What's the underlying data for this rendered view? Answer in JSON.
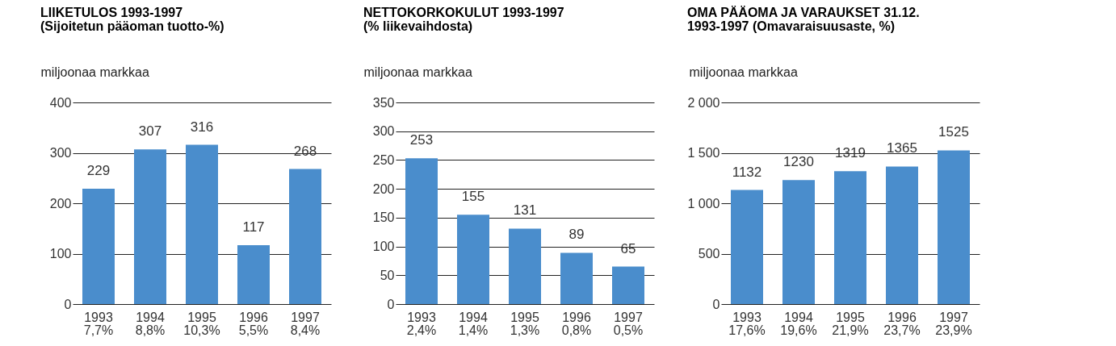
{
  "chart_data": [
    {
      "type": "bar",
      "title": "LIIKETULOS 1993-1997",
      "subtitle": "(Sijoitetun pääoman tuotto-%)",
      "ylabel": "miljoonaa markkaa",
      "categories": [
        "1993\n7,7%",
        "1994\n8,8%",
        "1995\n10,3%",
        "1996\n5,5%",
        "1997\n8,4%"
      ],
      "values": [
        229,
        307,
        316,
        117,
        268
      ],
      "color": "#4a8dcc",
      "ylim": [
        0,
        400
      ],
      "yticks": [
        0,
        100,
        200,
        300,
        400
      ],
      "grid": "y",
      "data_labels": true
    },
    {
      "type": "bar",
      "title": "NETTOKORKOKULUT 1993-1997",
      "subtitle": "(% liikevaihdosta)",
      "ylabel": "miljoonaa markkaa",
      "categories": [
        "1993\n2,4%",
        "1994\n1,4%",
        "1995\n1,3%",
        "1996\n0,8%",
        "1997\n0,5%"
      ],
      "values": [
        253,
        155,
        131,
        89,
        65
      ],
      "color": "#4a8dcc",
      "ylim": [
        0,
        350
      ],
      "yticks": [
        0,
        50,
        100,
        150,
        200,
        250,
        300,
        350
      ],
      "grid": "y",
      "data_labels": true
    },
    {
      "type": "bar",
      "title": "OMA PÄÄOMA JA VARAUKSET 31.12.",
      "subtitle": "1993-1997 (Omavaraisuusaste, %)",
      "ylabel": "miljoonaa markkaa",
      "categories": [
        "1993\n17,6%",
        "1994\n19,6%",
        "1995\n21,9%",
        "1996\n23,7%",
        "1997\n23,9%"
      ],
      "values": [
        1132,
        1230,
        1319,
        1365,
        1525
      ],
      "color": "#4a8dcc",
      "ylim": [
        0,
        2000
      ],
      "yticks": [
        0,
        {
          "value": 500,
          "label": "500"
        },
        {
          "value": 1000,
          "label": "1 000"
        },
        {
          "value": 1500,
          "label": "1 500"
        },
        {
          "value": 2000,
          "label": "2 000"
        }
      ],
      "grid": "y",
      "data_labels": true
    }
  ]
}
